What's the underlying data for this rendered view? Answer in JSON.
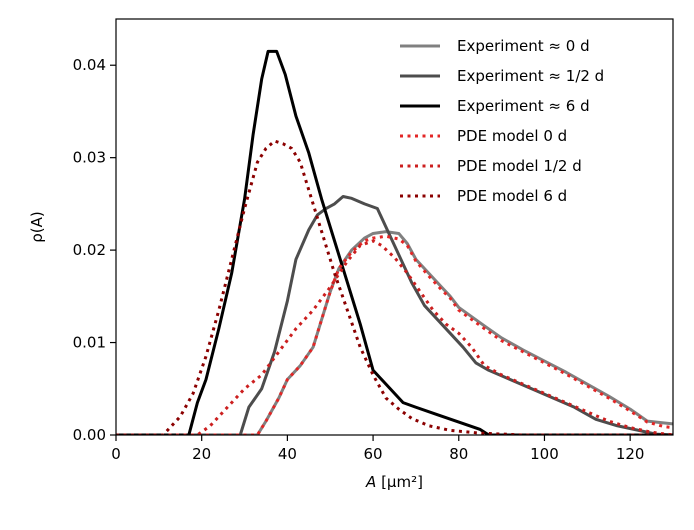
{
  "chart_data": {
    "type": "line",
    "xlabel_var": "A",
    "xlabel_unit": "[μm²]",
    "ylabel": "ρ(A)",
    "xlim": [
      0,
      130
    ],
    "ylim": [
      0,
      0.045
    ],
    "xticks": [
      0,
      20,
      40,
      60,
      80,
      100,
      120
    ],
    "yticks": [
      0.0,
      0.01,
      0.02,
      0.03,
      0.04
    ],
    "ytick_labels": [
      "0.00",
      "0.01",
      "0.02",
      "0.03",
      "0.04"
    ],
    "legend_position": "top-right",
    "series": [
      {
        "name": "Experiment ≈ 0 d",
        "color": "#808080",
        "style": "solid",
        "points": [
          [
            0,
            0
          ],
          [
            33,
            0
          ],
          [
            35,
            0.0015
          ],
          [
            38,
            0.004
          ],
          [
            40,
            0.006
          ],
          [
            43,
            0.0075
          ],
          [
            46,
            0.0095
          ],
          [
            48,
            0.0125
          ],
          [
            50,
            0.0155
          ],
          [
            52,
            0.018
          ],
          [
            55,
            0.02
          ],
          [
            58,
            0.0213
          ],
          [
            60,
            0.0218
          ],
          [
            63,
            0.022
          ],
          [
            66,
            0.0218
          ],
          [
            68,
            0.0207
          ],
          [
            70,
            0.019
          ],
          [
            73,
            0.0175
          ],
          [
            76,
            0.016
          ],
          [
            78,
            0.015
          ],
          [
            80,
            0.0138
          ],
          [
            83,
            0.0128
          ],
          [
            86,
            0.0118
          ],
          [
            90,
            0.0105
          ],
          [
            95,
            0.0092
          ],
          [
            100,
            0.008
          ],
          [
            105,
            0.0068
          ],
          [
            110,
            0.0055
          ],
          [
            115,
            0.0042
          ],
          [
            120,
            0.0028
          ],
          [
            124,
            0.0015
          ],
          [
            128,
            0.0013
          ],
          [
            130,
            0.0012
          ]
        ]
      },
      {
        "name": "Experiment ≈ 1/2 d",
        "color": "#4d4d4d",
        "style": "solid",
        "points": [
          [
            0,
            0
          ],
          [
            29,
            0
          ],
          [
            31,
            0.003
          ],
          [
            34,
            0.005
          ],
          [
            37,
            0.009
          ],
          [
            40,
            0.0145
          ],
          [
            42,
            0.019
          ],
          [
            45,
            0.0222
          ],
          [
            47,
            0.0238
          ],
          [
            49,
            0.0245
          ],
          [
            51,
            0.025
          ],
          [
            53,
            0.0258
          ],
          [
            55,
            0.0256
          ],
          [
            58,
            0.025
          ],
          [
            61,
            0.0245
          ],
          [
            63,
            0.0225
          ],
          [
            66,
            0.0195
          ],
          [
            69,
            0.0165
          ],
          [
            72,
            0.014
          ],
          [
            75,
            0.0125
          ],
          [
            78,
            0.011
          ],
          [
            81,
            0.0095
          ],
          [
            84,
            0.0078
          ],
          [
            87,
            0.007
          ],
          [
            92,
            0.006
          ],
          [
            97,
            0.005
          ],
          [
            102,
            0.004
          ],
          [
            107,
            0.003
          ],
          [
            112,
            0.0017
          ],
          [
            117,
            0.001
          ],
          [
            122,
            0.0005
          ],
          [
            126,
            0.0001
          ],
          [
            130,
            0
          ]
        ]
      },
      {
        "name": "Experiment ≈ 6 d",
        "color": "#000000",
        "style": "solid",
        "points": [
          [
            0,
            0
          ],
          [
            17,
            0
          ],
          [
            19,
            0.0035
          ],
          [
            21,
            0.006
          ],
          [
            24,
            0.0115
          ],
          [
            27,
            0.0175
          ],
          [
            30,
            0.0255
          ],
          [
            32,
            0.0325
          ],
          [
            34,
            0.0385
          ],
          [
            35.5,
            0.0415
          ],
          [
            37.5,
            0.0415
          ],
          [
            39.5,
            0.039
          ],
          [
            42,
            0.0345
          ],
          [
            45,
            0.0305
          ],
          [
            48,
            0.0255
          ],
          [
            51,
            0.021
          ],
          [
            54,
            0.0165
          ],
          [
            57,
            0.012
          ],
          [
            60,
            0.007
          ],
          [
            63,
            0.0055
          ],
          [
            67,
            0.0035
          ],
          [
            70,
            0.003
          ],
          [
            75,
            0.0022
          ],
          [
            80,
            0.0014
          ],
          [
            85,
            0.0006
          ],
          [
            87,
            0
          ],
          [
            130,
            0
          ]
        ]
      },
      {
        "name": "PDE model 0 d",
        "color": "#e32626",
        "style": "dotted",
        "points": [
          [
            0,
            0
          ],
          [
            33,
            0
          ],
          [
            35,
            0.0015
          ],
          [
            38,
            0.004
          ],
          [
            40,
            0.006
          ],
          [
            43,
            0.0075
          ],
          [
            46,
            0.0095
          ],
          [
            48,
            0.0125
          ],
          [
            50,
            0.0155
          ],
          [
            52,
            0.018
          ],
          [
            55,
            0.0198
          ],
          [
            58,
            0.021
          ],
          [
            60,
            0.0213
          ],
          [
            63,
            0.0215
          ],
          [
            66,
            0.0212
          ],
          [
            68,
            0.0205
          ],
          [
            70,
            0.0188
          ],
          [
            73,
            0.0172
          ],
          [
            76,
            0.0157
          ],
          [
            78,
            0.0148
          ],
          [
            80,
            0.0135
          ],
          [
            83,
            0.0125
          ],
          [
            86,
            0.0115
          ],
          [
            90,
            0.0102
          ],
          [
            95,
            0.009
          ],
          [
            100,
            0.0078
          ],
          [
            105,
            0.0066
          ],
          [
            110,
            0.0053
          ],
          [
            115,
            0.004
          ],
          [
            120,
            0.0026
          ],
          [
            124,
            0.0014
          ],
          [
            128,
            0.0009
          ],
          [
            130,
            0.0008
          ]
        ]
      },
      {
        "name": "PDE model 1/2 d",
        "color": "#cc1f1f",
        "style": "dotted",
        "points": [
          [
            0,
            0
          ],
          [
            19,
            0
          ],
          [
            22,
            0.001
          ],
          [
            26,
            0.003
          ],
          [
            30,
            0.005
          ],
          [
            34,
            0.0065
          ],
          [
            38,
            0.009
          ],
          [
            42,
            0.0115
          ],
          [
            46,
            0.0135
          ],
          [
            50,
            0.016
          ],
          [
            54,
            0.0188
          ],
          [
            57,
            0.0205
          ],
          [
            60,
            0.021
          ],
          [
            62,
            0.0205
          ],
          [
            65,
            0.0192
          ],
          [
            68,
            0.0175
          ],
          [
            71,
            0.0155
          ],
          [
            74,
            0.0135
          ],
          [
            77,
            0.012
          ],
          [
            80,
            0.011
          ],
          [
            83,
            0.0095
          ],
          [
            86,
            0.0075
          ],
          [
            90,
            0.0065
          ],
          [
            95,
            0.0055
          ],
          [
            100,
            0.0045
          ],
          [
            105,
            0.0035
          ],
          [
            110,
            0.0025
          ],
          [
            115,
            0.0015
          ],
          [
            120,
            0.0008
          ],
          [
            125,
            0.0003
          ],
          [
            130,
            0
          ]
        ]
      },
      {
        "name": "PDE model 6 d",
        "color": "#8b0000",
        "style": "dotted",
        "points": [
          [
            0,
            0
          ],
          [
            11,
            0
          ],
          [
            13,
            0.001
          ],
          [
            15,
            0.002
          ],
          [
            18,
            0.0045
          ],
          [
            21,
            0.0085
          ],
          [
            24,
            0.0135
          ],
          [
            27,
            0.019
          ],
          [
            30,
            0.0245
          ],
          [
            33,
            0.0295
          ],
          [
            35,
            0.031
          ],
          [
            37,
            0.0318
          ],
          [
            39,
            0.0315
          ],
          [
            41,
            0.031
          ],
          [
            43,
            0.0295
          ],
          [
            45,
            0.0265
          ],
          [
            48,
            0.022
          ],
          [
            51,
            0.0175
          ],
          [
            54,
            0.0135
          ],
          [
            57,
            0.0095
          ],
          [
            60,
            0.0065
          ],
          [
            63,
            0.004
          ],
          [
            66,
            0.0028
          ],
          [
            69,
            0.0018
          ],
          [
            73,
            0.001
          ],
          [
            78,
            0.0005
          ],
          [
            85,
            0.0002
          ],
          [
            90,
            0.0001
          ],
          [
            95,
            0
          ],
          [
            130,
            0
          ]
        ]
      }
    ]
  }
}
